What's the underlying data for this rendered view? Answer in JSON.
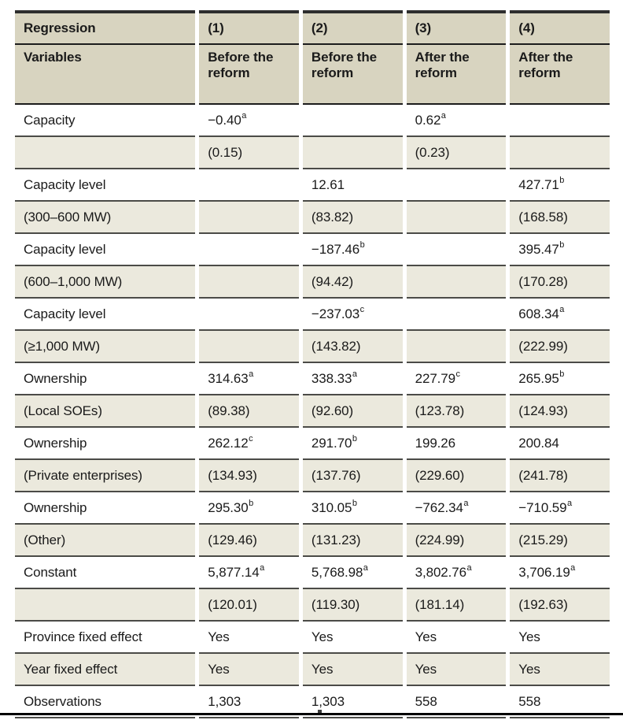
{
  "colors": {
    "header_bg": "#d8d4c0",
    "stripe_bg": "#ebe9dd",
    "row_rule": "#4b4b47",
    "header_rule": "#1c1c1c",
    "top_rule": "#2e2e2e",
    "text": "#1a1a1a",
    "page_bg": "#ffffff",
    "bottom_crop_line": "#000000"
  },
  "chart_data": {
    "type": "table",
    "title": "",
    "superscript_marker": "^",
    "header_row_1": [
      "Regression",
      "(1)",
      "(2)",
      "(3)",
      "(4)"
    ],
    "header_row_2": [
      "Variables",
      "Before the reform",
      "Before the reform",
      "After the reform",
      "After the reform"
    ],
    "rows": [
      {
        "label": "Capacity",
        "cells": [
          "−0.40^a",
          "",
          "0.62^a",
          ""
        ],
        "shaded": false
      },
      {
        "label": "",
        "cells": [
          "(0.15)",
          "",
          "(0.23)",
          ""
        ],
        "shaded": true
      },
      {
        "label": "Capacity level",
        "cells": [
          "",
          "12.61",
          "",
          "427.71^b"
        ],
        "shaded": false
      },
      {
        "label": "(300–600 MW)",
        "cells": [
          "",
          "(83.82)",
          "",
          "(168.58)"
        ],
        "shaded": true
      },
      {
        "label": "Capacity level",
        "cells": [
          "",
          "−187.46^b",
          "",
          "395.47^b"
        ],
        "shaded": false
      },
      {
        "label": "(600–1,000 MW)",
        "cells": [
          "",
          "(94.42)",
          "",
          "(170.28)"
        ],
        "shaded": true
      },
      {
        "label": "Capacity level",
        "cells": [
          "",
          "−237.03^c",
          "",
          "608.34^a"
        ],
        "shaded": false
      },
      {
        "label": "(≥1,000 MW)",
        "cells": [
          "",
          "(143.82)",
          "",
          "(222.99)"
        ],
        "shaded": true
      },
      {
        "label": "Ownership",
        "cells": [
          "314.63^a",
          "338.33^a",
          "227.79^c",
          "265.95^b"
        ],
        "shaded": false
      },
      {
        "label": "(Local SOEs)",
        "cells": [
          "(89.38)",
          "(92.60)",
          "(123.78)",
          "(124.93)"
        ],
        "shaded": true
      },
      {
        "label": "Ownership",
        "cells": [
          "262.12^c",
          "291.70^b",
          "199.26",
          "200.84"
        ],
        "shaded": false
      },
      {
        "label": "(Private enterprises)",
        "cells": [
          "(134.93)",
          "(137.76)",
          "(229.60)",
          "(241.78)"
        ],
        "shaded": true
      },
      {
        "label": "Ownership",
        "cells": [
          "295.30^b",
          "310.05^b",
          "−762.34^a",
          "−710.59^a"
        ],
        "shaded": false
      },
      {
        "label": "(Other)",
        "cells": [
          "(129.46)",
          "(131.23)",
          "(224.99)",
          "(215.29)"
        ],
        "shaded": true
      },
      {
        "label": "Constant",
        "cells": [
          "5,877.14^a",
          "5,768.98^a",
          "3,802.76^a",
          "3,706.19^a"
        ],
        "shaded": false
      },
      {
        "label": "",
        "cells": [
          "(120.01)",
          "(119.30)",
          "(181.14)",
          "(192.63)"
        ],
        "shaded": true
      },
      {
        "label": "Province fixed effect",
        "cells": [
          "Yes",
          "Yes",
          "Yes",
          "Yes"
        ],
        "shaded": false
      },
      {
        "label": "Year fixed effect",
        "cells": [
          "Yes",
          "Yes",
          "Yes",
          "Yes"
        ],
        "shaded": true
      },
      {
        "label": "Observations",
        "cells": [
          "1,303",
          "1,303",
          "558",
          "558"
        ],
        "shaded": false
      }
    ]
  }
}
